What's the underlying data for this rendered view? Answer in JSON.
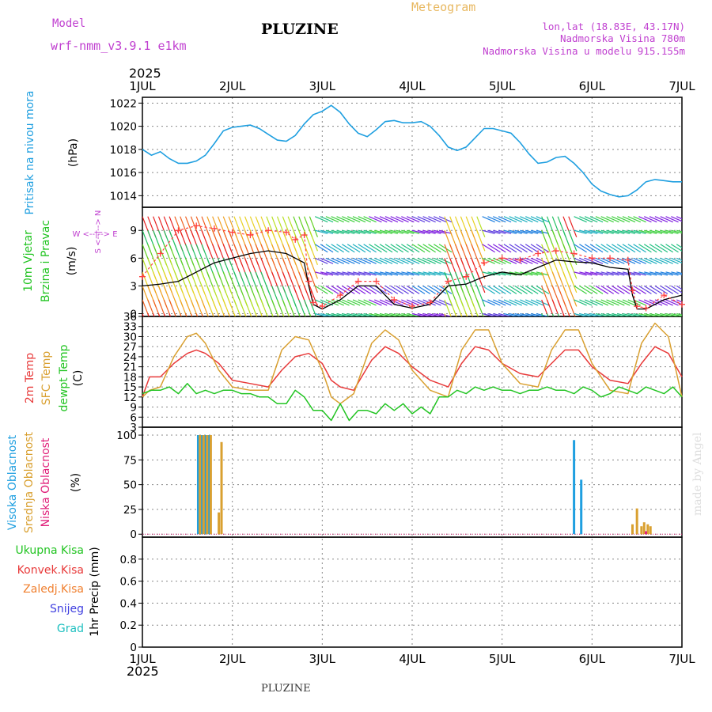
{
  "header": {
    "model_label": "Model",
    "model_name": "wrf-nmm_v3.9.1 e1km",
    "station": "PLUZINE",
    "title": "Meteogram",
    "lonlat": "lon,lat (18.83E, 43.17N)",
    "elevation": "Nadmorska Visina 780m",
    "model_elevation": "Nadmorska Visina u modelu 915.155m",
    "year": "2025",
    "footer_station": "PLUZINE",
    "credit": "made by Angel"
  },
  "colors": {
    "pressure": "#1f9fe0",
    "temp2m": "#e83a3a",
    "sfc_temp": "#d9a030",
    "dewpt": "#22c422",
    "high_cloud": "#1f9fe0",
    "mid_cloud": "#d9a030",
    "low_cloud": "#e0207a",
    "wind_speed": "#000000",
    "gust_marker": "#ff4040",
    "wind_label": "#22c422",
    "label_purple": "#c040d0",
    "header_orange": "#e8b860",
    "precip_total": "#22c422",
    "precip_conv": "#e83a3a",
    "precip_frozen": "#f08030",
    "precip_snow": "#4040e0",
    "precip_hail": "#20c0c0",
    "grid": "#888888"
  },
  "chart_data": [
    {
      "type": "line",
      "panel": "pressure",
      "ylabel": "(hPa)",
      "side_labels": [
        "Pritisak na nivou mora"
      ],
      "x_unit": "days from 1JUL",
      "x_ticks": [
        "1JUL",
        "2JUL",
        "3JUL",
        "4JUL",
        "5JUL",
        "6JUL",
        "7JUL"
      ],
      "ylim": [
        1013,
        1022.5
      ],
      "yticks": [
        1014,
        1016,
        1018,
        1020,
        1022
      ],
      "grid": true,
      "series": [
        {
          "values_x": [
            0,
            0.1,
            0.2,
            0.3,
            0.4,
            0.5,
            0.6,
            0.7,
            0.8,
            0.9,
            1.0,
            1.1,
            1.2,
            1.3,
            1.4,
            1.5,
            1.6,
            1.7,
            1.8,
            1.9,
            2.0,
            2.1,
            2.2,
            2.3,
            2.4,
            2.5,
            2.6,
            2.7,
            2.8,
            2.9,
            3.0,
            3.1,
            3.2,
            3.3,
            3.4,
            3.5,
            3.6,
            3.7,
            3.8,
            3.9,
            4.0,
            4.1,
            4.2,
            4.3,
            4.4,
            4.5,
            4.6,
            4.7,
            4.8,
            4.9,
            5.0,
            5.1,
            5.2,
            5.3,
            5.4,
            5.5,
            5.6,
            5.7,
            5.8,
            5.9,
            6.0
          ],
          "values": [
            1018.0,
            1017.5,
            1017.8,
            1017.2,
            1016.8,
            1016.8,
            1017.0,
            1017.5,
            1018.5,
            1019.6,
            1019.9,
            1020.0,
            1020.1,
            1019.8,
            1019.3,
            1018.8,
            1018.7,
            1019.2,
            1020.2,
            1021.0,
            1021.3,
            1021.8,
            1021.2,
            1020.2,
            1019.4,
            1019.1,
            1019.7,
            1020.4,
            1020.5,
            1020.3,
            1020.3,
            1020.4,
            1020.0,
            1019.2,
            1018.2,
            1017.9,
            1018.2,
            1019.0,
            1019.8,
            1019.8,
            1019.6,
            1019.4,
            1018.6,
            1017.6,
            1016.8,
            1016.9,
            1017.3,
            1017.4,
            1016.8,
            1016.0,
            1015.0,
            1014.4,
            1014.1,
            1013.9,
            1014.0,
            1014.5,
            1015.2,
            1015.4,
            1015.3,
            1015.2,
            1015.2
          ]
        }
      ]
    },
    {
      "type": "line",
      "panel": "wind",
      "ylabel": "(m/s)",
      "side_labels": [
        "10m Vjetar",
        "Brzina i Pravac"
      ],
      "direction_legend": [
        "W",
        "<--|-->",
        "E",
        "S",
        "<--|-->",
        "N"
      ],
      "ylim": [
        -0.3,
        11.5
      ],
      "yticks": [
        0,
        3,
        6,
        9
      ],
      "grid": true,
      "series": [
        {
          "name": "speed",
          "values_x": [
            0,
            0.2,
            0.4,
            0.6,
            0.8,
            1.0,
            1.2,
            1.4,
            1.6,
            1.7,
            1.8,
            1.85,
            1.9,
            2.0,
            2.2,
            2.4,
            2.6,
            2.8,
            3.0,
            3.2,
            3.4,
            3.6,
            3.8,
            4.0,
            4.2,
            4.4,
            4.6,
            4.8,
            5.0,
            5.2,
            5.4,
            5.45,
            5.5,
            5.6,
            5.8,
            6.0
          ],
          "values": [
            3.0,
            3.2,
            3.5,
            4.5,
            5.5,
            6.0,
            6.5,
            6.8,
            6.5,
            6.0,
            5.5,
            3.0,
            1.0,
            0.5,
            1.5,
            3.0,
            3.0,
            1.0,
            0.6,
            1.0,
            3.0,
            3.2,
            4.0,
            4.5,
            4.2,
            5.0,
            5.8,
            5.6,
            5.5,
            5.0,
            4.8,
            2.0,
            0.5,
            0.5,
            1.5,
            2.0
          ]
        },
        {
          "name": "gust",
          "values_x": [
            0,
            0.2,
            0.4,
            0.6,
            0.8,
            1.0,
            1.2,
            1.4,
            1.6,
            1.7,
            1.8,
            1.85,
            1.9,
            2.0,
            2.2,
            2.4,
            2.6,
            2.8,
            3.0,
            3.2,
            3.4,
            3.6,
            3.8,
            4.0,
            4.2,
            4.4,
            4.6,
            4.8,
            5.0,
            5.2,
            5.4,
            5.45,
            5.5,
            5.6,
            5.8,
            6.0
          ],
          "values": [
            4.0,
            6.5,
            9.0,
            9.5,
            9.2,
            8.8,
            8.5,
            9.0,
            8.8,
            8.0,
            8.5,
            3.5,
            1.2,
            0.8,
            2.0,
            3.5,
            3.5,
            1.5,
            0.8,
            1.2,
            3.5,
            4.0,
            5.5,
            6.0,
            5.8,
            6.5,
            6.8,
            6.5,
            6.0,
            6.0,
            5.8,
            2.5,
            0.8,
            0.6,
            2.0,
            1.0
          ]
        }
      ]
    },
    {
      "type": "line",
      "panel": "temperature",
      "ylabel": "(C)",
      "side_labels": [
        "2m Temp",
        "SFC Temp",
        "dewpt Temp"
      ],
      "ylim": [
        3,
        36
      ],
      "yticks": [
        3,
        6,
        9,
        12,
        15,
        18,
        21,
        24,
        27,
        30,
        33,
        36
      ],
      "grid": true,
      "series": [
        {
          "name": "2m Temp",
          "values_x": [
            0,
            0.08,
            0.2,
            0.35,
            0.5,
            0.6,
            0.7,
            0.85,
            1.0,
            1.2,
            1.4,
            1.55,
            1.7,
            1.85,
            2.0,
            2.1,
            2.2,
            2.35,
            2.55,
            2.7,
            2.85,
            3.0,
            3.2,
            3.4,
            3.55,
            3.7,
            3.85,
            4.0,
            4.2,
            4.4,
            4.55,
            4.7,
            4.85,
            5.0,
            5.2,
            5.4,
            5.55,
            5.7,
            5.85,
            6.0
          ],
          "values": [
            12,
            18,
            18,
            22,
            25,
            26,
            25,
            22,
            17,
            16,
            15,
            20,
            24,
            25,
            22,
            17,
            15,
            14,
            23,
            27,
            25,
            21,
            17,
            15,
            22,
            27,
            26,
            22,
            19,
            18,
            22,
            26,
            26,
            21,
            17,
            16,
            22,
            27,
            25,
            18
          ]
        },
        {
          "name": "SFC Temp",
          "values_x": [
            0,
            0.08,
            0.2,
            0.35,
            0.5,
            0.6,
            0.7,
            0.85,
            1.0,
            1.2,
            1.4,
            1.55,
            1.7,
            1.85,
            2.0,
            2.1,
            2.2,
            2.35,
            2.55,
            2.7,
            2.85,
            3.0,
            3.2,
            3.4,
            3.55,
            3.7,
            3.85,
            4.0,
            4.2,
            4.4,
            4.55,
            4.7,
            4.85,
            5.0,
            5.2,
            5.4,
            5.55,
            5.7,
            5.85,
            6.0
          ],
          "values": [
            12,
            14,
            15,
            24,
            30,
            31,
            28,
            20,
            15,
            14,
            14,
            26,
            30,
            29,
            20,
            12,
            10,
            13,
            28,
            32,
            29,
            20,
            14,
            12,
            26,
            32,
            32,
            22,
            16,
            15,
            26,
            32,
            32,
            22,
            14,
            13,
            28,
            34,
            30,
            12
          ]
        },
        {
          "name": "dewpt Temp",
          "values_x": [
            0,
            0.1,
            0.2,
            0.3,
            0.4,
            0.5,
            0.6,
            0.7,
            0.8,
            0.9,
            1.0,
            1.1,
            1.2,
            1.3,
            1.4,
            1.5,
            1.6,
            1.7,
            1.8,
            1.9,
            2.0,
            2.1,
            2.2,
            2.3,
            2.4,
            2.5,
            2.6,
            2.7,
            2.8,
            2.9,
            3.0,
            3.1,
            3.2,
            3.3,
            3.4,
            3.5,
            3.6,
            3.7,
            3.8,
            3.9,
            4.0,
            4.1,
            4.2,
            4.3,
            4.4,
            4.5,
            4.6,
            4.7,
            4.8,
            4.9,
            5.0,
            5.1,
            5.2,
            5.3,
            5.4,
            5.5,
            5.6,
            5.7,
            5.8,
            5.9,
            6.0
          ],
          "values": [
            13,
            14,
            14,
            15,
            13,
            16,
            13,
            14,
            13,
            14,
            14,
            13,
            13,
            12,
            12,
            10,
            10,
            14,
            12,
            8,
            8,
            5,
            10,
            5,
            8,
            8,
            7,
            10,
            8,
            10,
            7,
            9,
            7,
            12,
            12,
            14,
            13,
            15,
            14,
            15,
            14,
            14,
            13,
            14,
            14,
            15,
            14,
            14,
            13,
            15,
            14,
            12,
            13,
            15,
            14,
            13,
            15,
            14,
            13,
            15,
            12
          ]
        }
      ]
    },
    {
      "type": "bar",
      "panel": "cloud",
      "ylabel": "(%)",
      "side_labels": [
        "Visoka Oblacnost",
        "Srednja Oblacnost",
        "Niska Oblacnost"
      ],
      "ylim": [
        -3,
        108
      ],
      "yticks": [
        0,
        25,
        50,
        75,
        100
      ],
      "grid": true,
      "series": [
        {
          "name": "Visoka Oblacnost",
          "values_x": [
            0.62,
            0.66,
            0.7,
            0.74,
            4.8,
            4.88
          ],
          "values": [
            100,
            100,
            100,
            100,
            95,
            55
          ]
        },
        {
          "name": "Srednja Oblacnost",
          "values_x": [
            0.64,
            0.68,
            0.72,
            0.76,
            0.85,
            0.88,
            5.45,
            5.5,
            5.55,
            5.58,
            5.62,
            5.65
          ],
          "values": [
            100,
            100,
            100,
            100,
            22,
            93,
            10,
            26,
            8,
            12,
            10,
            8
          ]
        },
        {
          "name": "Niska Oblacnost",
          "values_x": [
            5.6
          ],
          "values": [
            3
          ]
        }
      ]
    },
    {
      "type": "bar",
      "panel": "precip",
      "ylabel": "1hr Precip (mm)",
      "side_labels": [
        "Ukupna Kisa",
        "Konvek.Kisa",
        "Zaledj.Kisa",
        "Snijeg",
        "Grad"
      ],
      "ylim": [
        0,
        1.0
      ],
      "yticks": [
        0,
        0.2,
        0.4,
        0.6,
        0.8
      ],
      "grid": true,
      "series": []
    }
  ]
}
